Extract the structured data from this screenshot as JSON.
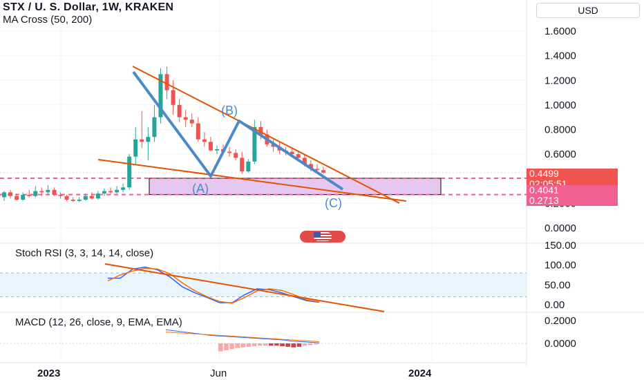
{
  "header": {
    "title": "STX / U. S. Dollar, 1W, KRAKEN",
    "indicator": "MA Cross (50, 200)",
    "currency": "USD"
  },
  "price_tags": [
    {
      "value": "0.4499",
      "color": "#f05350"
    },
    {
      "value": "02:05:51",
      "color": "#f05350"
    },
    {
      "value": "0.4041",
      "color": "#f06090"
    },
    {
      "value": "0.2713",
      "color": "#f06090"
    }
  ],
  "panes": {
    "stoch_label": "Stoch RSI (3, 3, 14, 14, close)",
    "macd_label": "MACD (12, 26, close, 9, EMA, EMA)"
  },
  "annotations": {
    "A": "(A)",
    "B": "(B)",
    "C": "(C)"
  },
  "colors": {
    "up": "#26a69a",
    "down": "#ef5350",
    "trend": "#e65100",
    "wave": "#4a8ac9",
    "box": "#e6c7ef"
  },
  "chart_data": [
    {
      "type": "candlestick",
      "title": "STX / U. S. Dollar, 1W, KRAKEN",
      "y_ticks": [
        "1.6000",
        "1.4000",
        "1.2000",
        "1.0000",
        "0.8000",
        "0.6000",
        "0.4000",
        "0.2000",
        "0.0000"
      ],
      "ylim": [
        0,
        1.6
      ],
      "x_ticks": [
        "2023",
        "Jun",
        "2024"
      ],
      "candles": [
        [
          0.25,
          0.3,
          0.22,
          0.29
        ],
        [
          0.29,
          0.31,
          0.24,
          0.26
        ],
        [
          0.26,
          0.28,
          0.22,
          0.23
        ],
        [
          0.23,
          0.29,
          0.22,
          0.27
        ],
        [
          0.27,
          0.31,
          0.25,
          0.26
        ],
        [
          0.26,
          0.34,
          0.25,
          0.3
        ],
        [
          0.3,
          0.33,
          0.26,
          0.29
        ],
        [
          0.29,
          0.35,
          0.27,
          0.31
        ],
        [
          0.31,
          0.33,
          0.26,
          0.27
        ],
        [
          0.27,
          0.29,
          0.24,
          0.26
        ],
        [
          0.26,
          0.27,
          0.22,
          0.23
        ],
        [
          0.23,
          0.25,
          0.21,
          0.22
        ],
        [
          0.22,
          0.25,
          0.21,
          0.23
        ],
        [
          0.23,
          0.28,
          0.22,
          0.26
        ],
        [
          0.26,
          0.29,
          0.23,
          0.24
        ],
        [
          0.24,
          0.3,
          0.23,
          0.28
        ],
        [
          0.28,
          0.32,
          0.26,
          0.3
        ],
        [
          0.3,
          0.33,
          0.27,
          0.29
        ],
        [
          0.29,
          0.34,
          0.28,
          0.31
        ],
        [
          0.31,
          0.36,
          0.29,
          0.33
        ],
        [
          0.33,
          0.6,
          0.31,
          0.58
        ],
        [
          0.58,
          0.82,
          0.52,
          0.72
        ],
        [
          0.72,
          0.95,
          0.65,
          0.7
        ],
        [
          0.7,
          0.82,
          0.55,
          0.74
        ],
        [
          0.74,
          1.0,
          0.7,
          0.9
        ],
        [
          0.9,
          1.3,
          0.85,
          1.25
        ],
        [
          1.25,
          1.31,
          1.05,
          1.12
        ],
        [
          1.12,
          1.2,
          0.92,
          1.0
        ],
        [
          1.0,
          1.05,
          0.86,
          0.9
        ],
        [
          0.9,
          0.96,
          0.82,
          0.88
        ],
        [
          0.88,
          0.93,
          0.82,
          0.85
        ],
        [
          0.85,
          0.9,
          0.7,
          0.72
        ],
        [
          0.72,
          0.78,
          0.66,
          0.7
        ],
        [
          0.7,
          0.74,
          0.62,
          0.63
        ],
        [
          0.63,
          0.67,
          0.6,
          0.64
        ],
        [
          0.64,
          0.68,
          0.6,
          0.62
        ],
        [
          0.62,
          0.66,
          0.58,
          0.61
        ],
        [
          0.61,
          0.64,
          0.55,
          0.57
        ],
        [
          0.57,
          0.62,
          0.44,
          0.46
        ],
        [
          0.46,
          0.56,
          0.45,
          0.54
        ],
        [
          0.54,
          0.88,
          0.52,
          0.82
        ],
        [
          0.82,
          0.87,
          0.72,
          0.76
        ],
        [
          0.76,
          0.8,
          0.66,
          0.68
        ],
        [
          0.68,
          0.72,
          0.62,
          0.66
        ],
        [
          0.66,
          0.7,
          0.6,
          0.63
        ],
        [
          0.63,
          0.66,
          0.59,
          0.62
        ],
        [
          0.62,
          0.65,
          0.58,
          0.6
        ],
        [
          0.6,
          0.63,
          0.56,
          0.57
        ],
        [
          0.57,
          0.6,
          0.5,
          0.52
        ],
        [
          0.52,
          0.55,
          0.46,
          0.48
        ],
        [
          0.48,
          0.52,
          0.44,
          0.47
        ],
        [
          0.47,
          0.5,
          0.44,
          0.45
        ]
      ],
      "horizontal_levels": [
        0.4041,
        0.2713
      ],
      "last_price": 0.4499
    },
    {
      "type": "line",
      "title": "Stoch RSI (3, 3, 14, 14, close)",
      "y_ticks": [
        "150.00",
        "100.00",
        "50.00",
        "0.00"
      ],
      "ylim": [
        0,
        150
      ],
      "band": [
        20,
        80
      ],
      "series": [
        {
          "values": [
            67,
            67,
            90,
            95,
            88,
            70,
            45,
            30,
            18,
            5,
            5,
            25,
            40,
            38,
            30,
            20,
            10,
            6
          ]
        },
        {
          "values": [
            60,
            75,
            85,
            92,
            90,
            78,
            55,
            35,
            20,
            8,
            4,
            18,
            35,
            40,
            36,
            25,
            12,
            7
          ]
        }
      ]
    },
    {
      "type": "bar",
      "title": "MACD (12, 26, close, 9, EMA, EMA)",
      "y_ticks": [
        "0.2000",
        "0.0000"
      ],
      "ylim": [
        -0.12,
        0.3
      ],
      "series": [
        {
          "values": [
            -0.07,
            -0.06,
            -0.05,
            -0.04,
            -0.035,
            -0.03,
            -0.025,
            -0.02,
            -0.02,
            -0.02,
            -0.02,
            -0.025,
            -0.03,
            -0.035,
            -0.03,
            -0.02,
            -0.015,
            -0.01
          ]
        },
        {
          "values": [
            0.12,
            0.11,
            0.1,
            0.09,
            0.08,
            0.07,
            0.065,
            0.06,
            0.055,
            0.05,
            0.045,
            0.04,
            0.035,
            0.03,
            0.02,
            0.015,
            0.01,
            0.005
          ]
        },
        {
          "values": [
            0.1,
            0.095,
            0.09,
            0.085,
            0.08,
            0.075,
            0.07,
            0.065,
            0.06,
            0.055,
            0.05,
            0.045,
            0.04,
            0.035,
            0.03,
            0.025,
            0.02,
            0.015
          ]
        }
      ]
    }
  ]
}
